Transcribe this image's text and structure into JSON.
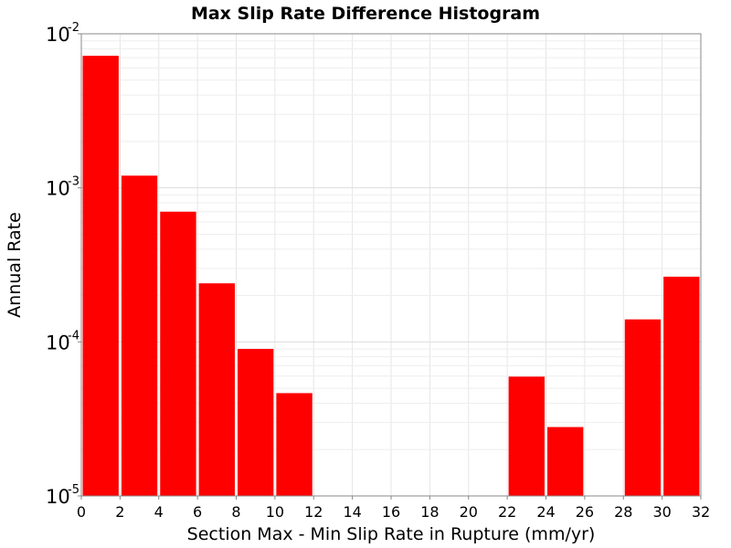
{
  "chart_data": {
    "type": "bar",
    "title": "Max Slip Rate Difference Histogram",
    "xlabel": "Section Max - Min Slip Rate in Rupture (mm/yr)",
    "ylabel": "Annual Rate",
    "x_scale": "linear",
    "y_scale": "log",
    "xlim": [
      0,
      32
    ],
    "ylim": [
      1e-05,
      0.01
    ],
    "x_ticks": [
      "0",
      "2",
      "4",
      "6",
      "8",
      "10",
      "12",
      "14",
      "16",
      "18",
      "20",
      "22",
      "24",
      "26",
      "28",
      "30",
      "32"
    ],
    "y_ticks": [
      {
        "base": "10",
        "exp": "-2",
        "value": 0.01
      },
      {
        "base": "10",
        "exp": "-3",
        "value": 0.001
      },
      {
        "base": "10",
        "exp": "-4",
        "value": 0.0001
      },
      {
        "base": "10",
        "exp": "-5",
        "value": 1e-05
      }
    ],
    "grid": true,
    "bar_color": "#ff0000",
    "bar_width": 2,
    "bars": [
      {
        "x": 1,
        "value": 0.0072
      },
      {
        "x": 3,
        "value": 0.0012
      },
      {
        "x": 5,
        "value": 0.0007
      },
      {
        "x": 7,
        "value": 0.00024
      },
      {
        "x": 9,
        "value": 9e-05
      },
      {
        "x": 11,
        "value": 4.65e-05
      },
      {
        "x": 23,
        "value": 5.95e-05
      },
      {
        "x": 25,
        "value": 2.8e-05
      },
      {
        "x": 29,
        "value": 0.00014
      },
      {
        "x": 31,
        "value": 0.000265
      }
    ]
  }
}
